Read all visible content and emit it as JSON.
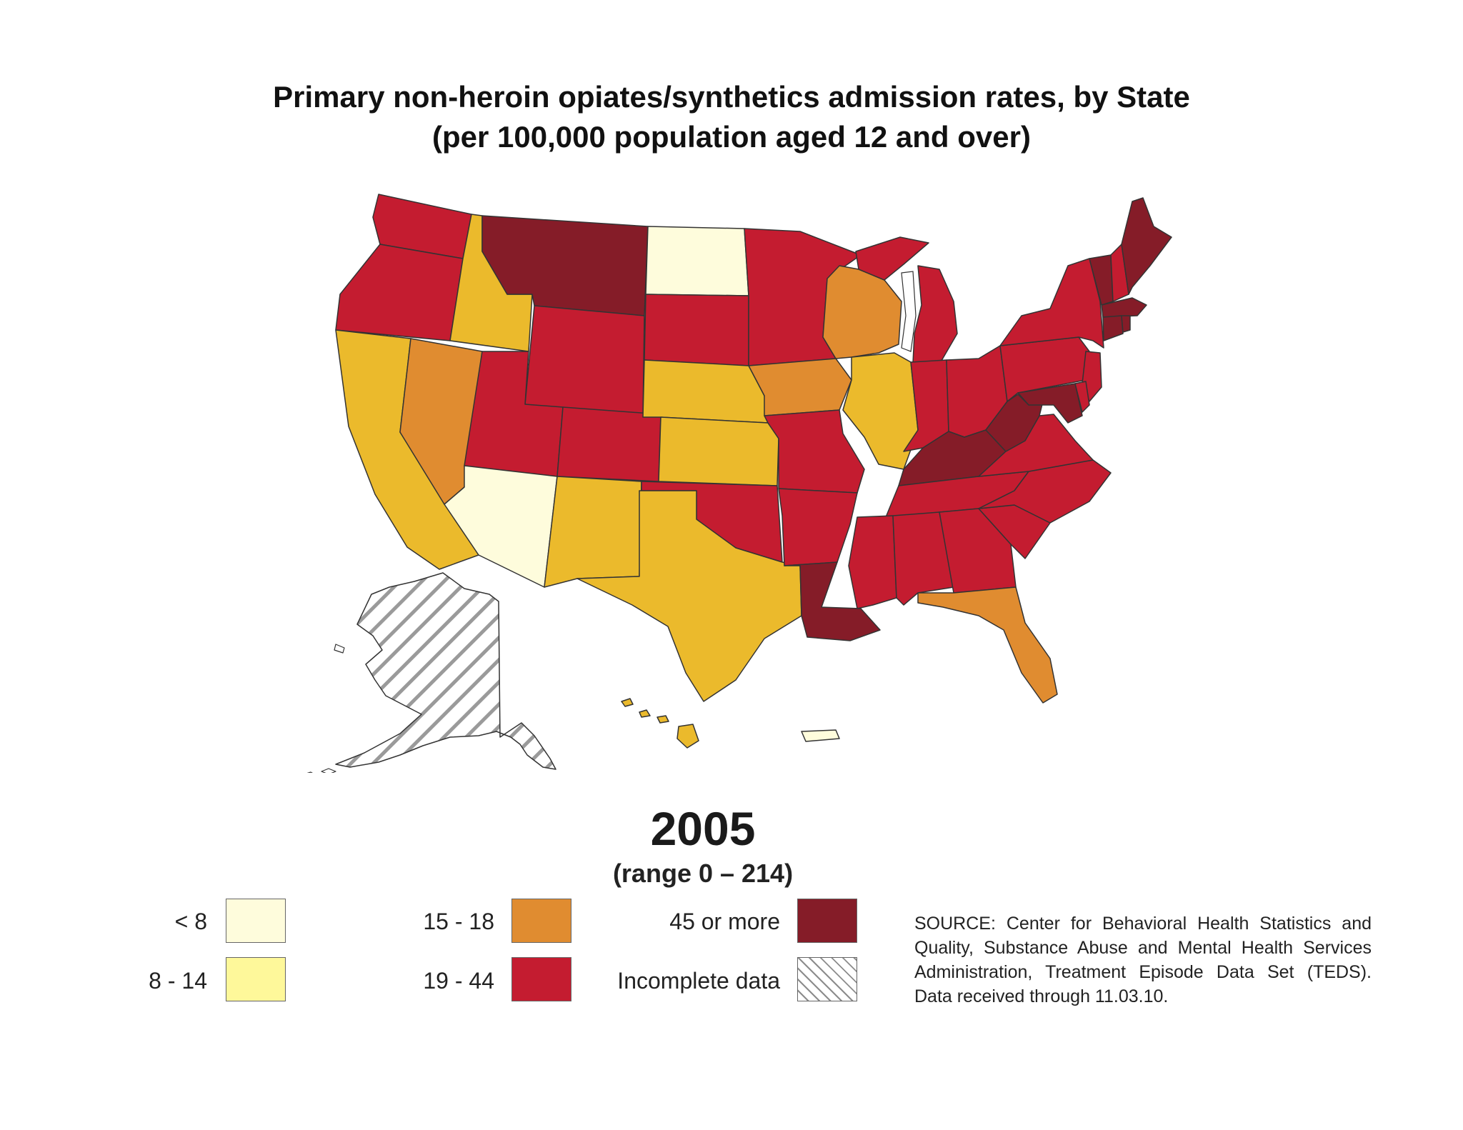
{
  "title": {
    "line1": "Primary non-heroin opiates/synthetics admission rates, by State",
    "line2": "(per 100,000 population aged 12 and over)"
  },
  "year": "2005",
  "range": "(range 0 – 214)",
  "colors": {
    "lt8": "#fefcdc",
    "r8_14": "#fef89a",
    "r15_18": "#e08c30",
    "r19_44": "#c41c30",
    "r45plus": "#851c28",
    "incomplete": "hatched",
    "midyellow": "#ebba2c"
  },
  "legend": [
    {
      "label": "< 8",
      "color": "#fefcdc"
    },
    {
      "label": "8 - 14",
      "color": "#fef89a"
    },
    {
      "label": "15 - 18",
      "color": "#e08c30"
    },
    {
      "label": "19 - 44",
      "color": "#c41c30"
    },
    {
      "label": "45 or more",
      "color": "#851c28"
    },
    {
      "label": "Incomplete data",
      "color": "hatched"
    }
  ],
  "source": "SOURCE: Center for Behavioral Health Statistics and Quality, Substance Abuse and Mental Health Services Administration, Treatment Episode Data Set (TEDS). Data received through 11.03.10."
}
